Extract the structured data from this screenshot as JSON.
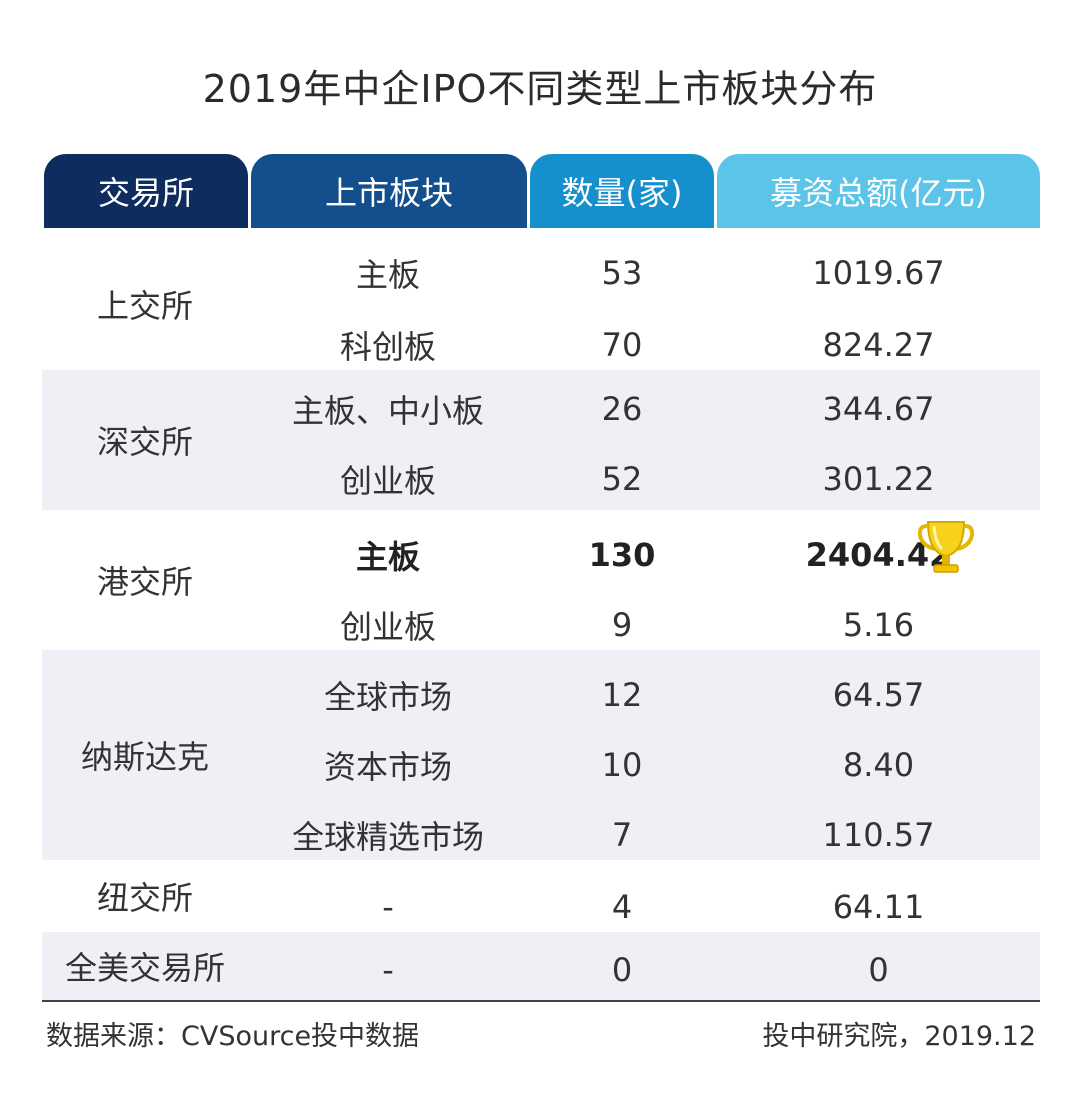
{
  "chart_data": {
    "type": "table",
    "title": "2019年中企IPO不同类型上市板块分布",
    "columns": [
      "交易所",
      "上市板块",
      "数量(家)",
      "募资总额(亿元)"
    ],
    "groups": [
      {
        "exchange": "上交所",
        "rows": [
          {
            "board": "主板",
            "count": "53",
            "amount": "1019.67"
          },
          {
            "board": "科创板",
            "count": "70",
            "amount": "824.27"
          }
        ]
      },
      {
        "exchange": "深交所",
        "rows": [
          {
            "board": "主板、中小板",
            "count": "26",
            "amount": "344.67"
          },
          {
            "board": "创业板",
            "count": "52",
            "amount": "301.22"
          }
        ]
      },
      {
        "exchange": "港交所",
        "rows": [
          {
            "board": "主板",
            "count": "130",
            "amount": "2404.42"
          },
          {
            "board": "创业板",
            "count": "9",
            "amount": "5.16"
          }
        ]
      },
      {
        "exchange": "纳斯达克",
        "rows": [
          {
            "board": "全球市场",
            "count": "12",
            "amount": "64.57"
          },
          {
            "board": "资本市场",
            "count": "10",
            "amount": "8.40"
          },
          {
            "board": "全球精选市场",
            "count": "7",
            "amount": "110.57"
          }
        ]
      },
      {
        "exchange": "纽交所",
        "rows": [
          {
            "board": "-",
            "count": "4",
            "amount": "64.11"
          }
        ]
      },
      {
        "exchange": "全美交易所",
        "rows": [
          {
            "board": "-",
            "count": "0",
            "amount": "0"
          }
        ]
      }
    ],
    "highlight": {
      "exchange": "港交所",
      "board": "主板",
      "marker": "trophy-icon"
    },
    "header_colors": [
      "#0e2c5e",
      "#134f8c",
      "#1690cd",
      "#5cc4e8"
    ]
  },
  "footer": {
    "source": "数据来源：CVSource投中数据",
    "credit": "投中研究院，2019.12"
  }
}
